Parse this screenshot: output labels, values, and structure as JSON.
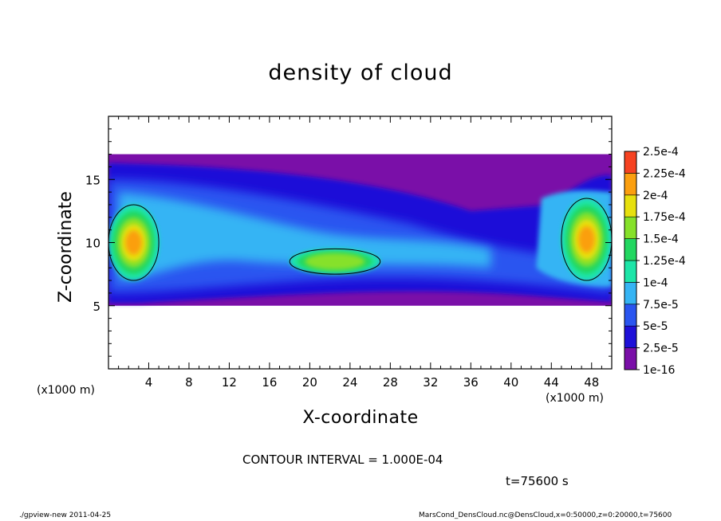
{
  "chart_data": {
    "type": "heatmap",
    "title": "density of cloud",
    "xlabel": "X-coordinate",
    "ylabel": "Z-coordinate",
    "x_unit_label": "(x1000 m)",
    "xlim": [
      0,
      50
    ],
    "ylim": [
      0,
      20
    ],
    "x_ticks": [
      "4",
      "8",
      "12",
      "16",
      "20",
      "24",
      "28",
      "32",
      "36",
      "40",
      "44",
      "48"
    ],
    "y_ticks": [
      "5",
      "10",
      "15"
    ],
    "colorbar": {
      "levels": [
        "1e-16",
        "2.5e-5",
        "5e-5",
        "7.5e-5",
        "1e-4",
        "1.25e-4",
        "1.5e-4",
        "1.75e-4",
        "2e-4",
        "2.25e-4",
        "2.5e-4"
      ],
      "colors": [
        "#7a0fa8",
        "#1e10d8",
        "#2a55f0",
        "#35b4f4",
        "#1ce5a8",
        "#22d760",
        "#86e12a",
        "#e7e00e",
        "#fb9f0f",
        "#f64221",
        "#fb9ca0"
      ]
    },
    "contour_interval_text": "CONTOUR INTERVAL = 1.000E-04",
    "time_text": "t=75600 s",
    "cloud_extent": {
      "z_min": 5,
      "z_max": 17
    },
    "high_density_regions": [
      {
        "x_range": [
          0,
          5
        ],
        "z_range": [
          7,
          13
        ],
        "max_value": "2e-4"
      },
      {
        "x_range": [
          45,
          50
        ],
        "z_range": [
          7,
          13.5
        ],
        "max_value": "2e-4"
      },
      {
        "x_range": [
          18,
          27
        ],
        "z_range": [
          7.5,
          9.5
        ],
        "max_value": "1.5e-4"
      }
    ]
  },
  "footer": {
    "left": "./gpview-new  2011-04-25",
    "right": "MarsCond_DensCloud.nc@DensCloud,x=0:50000,z=0:20000,t=75600"
  }
}
